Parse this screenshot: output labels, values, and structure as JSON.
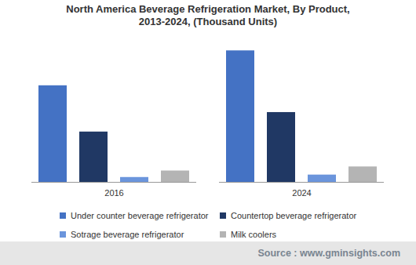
{
  "chart_data": {
    "type": "bar",
    "title": "North America Beverage Refrigeration Market, By Product,\n2013-2024, (Thousand Units)",
    "categories": [
      "2016",
      "2024"
    ],
    "series": [
      {
        "name": "Under counter beverage refrigerator",
        "color": "#4472c4",
        "values": [
          119,
          162
        ]
      },
      {
        "name": "Countertop beverage refrigerator",
        "color": "#203864",
        "values": [
          62,
          86
        ]
      },
      {
        "name": "Sotrage beverage refrigerator",
        "color": "#6b95dc",
        "values": [
          6,
          9
        ]
      },
      {
        "name": "Milk coolers",
        "color": "#b4b4b4",
        "values": [
          14,
          19
        ]
      }
    ],
    "ylim": [
      0,
      170
    ],
    "tick_labels": "x",
    "grid": false,
    "source": "Source : www.gminsights.com"
  }
}
